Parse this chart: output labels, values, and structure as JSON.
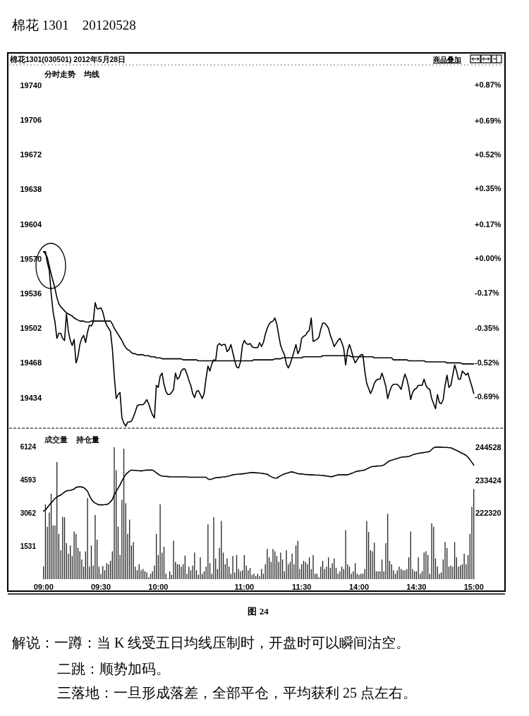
{
  "chart_data": [
    {
      "type": "line",
      "title": "棉花 1301    20120528",
      "subtitle": "棉花1301(030501) 2012年5月28日",
      "annotations": [
        "分时走势",
        "均线",
        "商品叠加"
      ],
      "categories": [
        null,
        null,
        null,
        null,
        null,
        null,
        null,
        null,
        null,
        null,
        null,
        null,
        null,
        null,
        null,
        null,
        null,
        null,
        null,
        null,
        null,
        null,
        null,
        null,
        null,
        null,
        null,
        null,
        null,
        null,
        null,
        null,
        null,
        null,
        null,
        null,
        null,
        null,
        null,
        null,
        null,
        null,
        null,
        null,
        null,
        null,
        null,
        null,
        null,
        null,
        null,
        null,
        null,
        null,
        null,
        null,
        null,
        null,
        null,
        null,
        null,
        null,
        null,
        null,
        null,
        null,
        null,
        null,
        null,
        null,
        null,
        null,
        null,
        null,
        null,
        null,
        null,
        null,
        null,
        null,
        null,
        null,
        null,
        null,
        null,
        null,
        null,
        null,
        null,
        null,
        null,
        null,
        null,
        null,
        null,
        null,
        null,
        null,
        null,
        null,
        null,
        null,
        null,
        null,
        null,
        null,
        null,
        null,
        null,
        null,
        null,
        null,
        null,
        null,
        null,
        null,
        null,
        null,
        null,
        null,
        null,
        null,
        null,
        null,
        null,
        null,
        null,
        null,
        null,
        null,
        null,
        null,
        null,
        null,
        null,
        null,
        null,
        null,
        null,
        null,
        null,
        null,
        null,
        null,
        null,
        null,
        null,
        null,
        null,
        null,
        null,
        null,
        null,
        null,
        null,
        null,
        null,
        null,
        null,
        null,
        null,
        null,
        null,
        null,
        null,
        null,
        null,
        null,
        null,
        null,
        null,
        null,
        null,
        null,
        null,
        null,
        null,
        null,
        null,
        null,
        null,
        null,
        null,
        null,
        null,
        null,
        null,
        null,
        null,
        null,
        null,
        null,
        null,
        null,
        null,
        null,
        null,
        null,
        null,
        null,
        null,
        null,
        null,
        null,
        null,
        null,
        null,
        null,
        null,
        null,
        null,
        null,
        null,
        null,
        null,
        null,
        null,
        null,
        null,
        null,
        null,
        null,
        null,
        null,
        null,
        null
      ],
      "ylim": [
        19404,
        19760
      ],
      "yticks": [
        19434,
        19468,
        19502,
        19536,
        19570,
        19604,
        19638,
        19672,
        19706,
        19740
      ],
      "y2lim": [
        -0.85,
        0.97
      ],
      "y2ticks": [
        {
          "value": -0.69,
          "label": "-0.69%"
        },
        {
          "value": -0.52,
          "label": "-0.52%"
        },
        {
          "value": -0.35,
          "label": "-0.35%"
        },
        {
          "value": -0.17,
          "label": "-0.17%"
        },
        {
          "value": 0,
          "label": "+0.00%"
        },
        {
          "value": 0.17,
          "label": "+0.17%"
        },
        {
          "value": 0.35,
          "label": "+0.35%"
        },
        {
          "value": 0.52,
          "label": "+0.52%"
        },
        {
          "value": 0.69,
          "label": "+0.69%"
        },
        {
          "value": 0.87,
          "label": "+0.87%"
        }
      ],
      "tick_labels": "y",
      "series": [
        {
          "color": "#000000",
          "values": [
            19577,
            19577,
            19566,
            19559,
            19536,
            19518,
            19508,
            19492,
            19497,
            19497,
            19492,
            19490,
            19516,
            19499,
            19490,
            19485,
            19491,
            19468,
            19474,
            19486,
            19492,
            19495,
            19488,
            19498,
            19505,
            19504,
            19508,
            19527,
            19521,
            19521,
            19522,
            19518,
            19510,
            19505,
            19502,
            19499,
            19482,
            19455,
            19433,
            19437,
            19439,
            19414,
            19409,
            19406,
            19410,
            19410,
            19411,
            19415,
            19420,
            19426,
            19427,
            19427,
            19427,
            19429,
            19432,
            19428,
            19422,
            19417,
            19414,
            19446,
            19444,
            19455,
            19458,
            19447,
            19440,
            19437,
            19437,
            19439,
            19442,
            19458,
            19452,
            19454,
            19460,
            19462,
            19462,
            19457,
            19451,
            19446,
            19438,
            19434,
            19440,
            19441,
            19437,
            19433,
            19438,
            19453,
            19465,
            19460,
            19467,
            19471,
            19470,
            19485,
            19487,
            19485,
            19486,
            19486,
            19479,
            19481,
            19486,
            19478,
            19470,
            19464,
            19463,
            19469,
            19485,
            19490,
            19487,
            19486,
            19487,
            19484,
            19483,
            19483,
            19483,
            19488,
            19484,
            19488,
            19496,
            19502,
            19506,
            19508,
            19509,
            19512,
            19506,
            19495,
            19485,
            19480,
            19476,
            19467,
            19463,
            19467,
            19473,
            19479,
            19486,
            19477,
            19481,
            19492,
            19494,
            19495,
            19498,
            19500,
            19512,
            19489,
            19490,
            19491,
            19493,
            19501,
            19507,
            19507,
            19505,
            19502,
            19495,
            19490,
            19484,
            19487,
            19490,
            19492,
            19488,
            19482,
            19466,
            19480,
            19486,
            19480,
            19473,
            19468,
            19471,
            19474,
            19476,
            19476,
            19460,
            19448,
            19443,
            19438,
            19442,
            19448,
            19451,
            19452,
            19452,
            19458,
            19452,
            19445,
            19433,
            19440,
            19445,
            19447,
            19447,
            19447,
            19445,
            19442,
            19450,
            19457,
            19452,
            19444,
            19432,
            19439,
            19442,
            19443,
            19446,
            19446,
            19446,
            19452,
            19446,
            19443,
            19442,
            19433,
            19428,
            19423,
            19437,
            19429,
            19428,
            19432,
            19446,
            19456,
            19444,
            19446,
            19456,
            19466,
            19460,
            19452,
            19452,
            19460,
            19458,
            19456,
            19458,
            19451,
            19445,
            19438
          ]
        },
        {
          "color": "#000000",
          "values": [
            19577,
            19575,
            19571,
            19563,
            19555,
            19548,
            19541,
            19532,
            19526,
            19523,
            19521,
            19519,
            19517,
            19516,
            19515,
            19514,
            19512,
            19511,
            19510,
            19509,
            19509,
            19509,
            19508,
            19508,
            19508,
            19509,
            19509,
            19509,
            19509,
            19509,
            19509,
            19509,
            19509,
            19509,
            19509,
            19509,
            19506,
            19502,
            19499,
            19496,
            19493,
            19490,
            19486,
            19483,
            19481,
            19480,
            19478,
            19477,
            19477,
            19476,
            19476,
            19476,
            19476,
            19475,
            19475,
            19475,
            19474,
            19474,
            19474,
            19473,
            19473,
            19473,
            19472,
            19472,
            19472,
            19472,
            19472,
            19472,
            19472,
            19472,
            19472,
            19472,
            19472,
            19471,
            19471,
            19471,
            19471,
            19471,
            19471,
            19471,
            19471,
            19470,
            19470,
            19470,
            19470,
            19470,
            19470,
            19470,
            19470,
            19470,
            19470,
            19470,
            19470,
            19470,
            19470,
            19470,
            19470,
            19470,
            19470,
            19470,
            19470,
            19470,
            19470,
            19470,
            19470,
            19470,
            19470,
            19470,
            19470,
            19470,
            19471,
            19471,
            19471,
            19471,
            19471,
            19471,
            19471,
            19471,
            19471,
            19471,
            19471,
            19472,
            19472,
            19472,
            19472,
            19473,
            19473,
            19473,
            19473,
            19473,
            19473,
            19473,
            19473,
            19473,
            19473,
            19473,
            19474,
            19474,
            19474,
            19474,
            19474,
            19474,
            19474,
            19474,
            19474,
            19474,
            19475,
            19475,
            19475,
            19475,
            19475,
            19475,
            19475,
            19475,
            19475,
            19475,
            19475,
            19475,
            19475,
            19475,
            19475,
            19474,
            19474,
            19474,
            19474,
            19474,
            19474,
            19474,
            19474,
            19474,
            19474,
            19474,
            19474,
            19473,
            19473,
            19473,
            19473,
            19473,
            19473,
            19473,
            19473,
            19473,
            19473,
            19471,
            19471,
            19471,
            19471,
            19471,
            19471,
            19471,
            19471,
            19470,
            19470,
            19470,
            19470,
            19470,
            19470,
            19470,
            19470,
            19470,
            19469,
            19469,
            19469,
            19469,
            19469,
            19469,
            19469,
            19469,
            19469,
            19469,
            19469,
            19468,
            19468,
            19468,
            19468,
            19468,
            19468,
            19468,
            19468,
            19467,
            19467,
            19467,
            19467,
            19467,
            19467,
            19467
          ]
        }
      ]
    },
    {
      "type": "bar",
      "annotations": [
        "图 24",
        "解说：一蹲：当 K 线受五日均线压制时，开盘时可以瞬间沽空。",
        "二跳：顺势加码。",
        "三落地：一旦形成落差，全部平仓，平均获利 25 点左右。"
      ],
      "categories": [
        "09:00",
        null,
        null,
        null,
        null,
        null,
        null,
        null,
        null,
        null,
        null,
        null,
        null,
        null,
        null,
        null,
        null,
        null,
        null,
        null,
        null,
        null,
        null,
        null,
        null,
        null,
        null,
        null,
        null,
        null,
        "09:30",
        null,
        null,
        null,
        null,
        null,
        null,
        null,
        null,
        null,
        null,
        null,
        null,
        null,
        null,
        null,
        null,
        null,
        null,
        null,
        null,
        null,
        null,
        null,
        null,
        null,
        null,
        null,
        null,
        null,
        "10:00",
        null,
        null,
        null,
        null,
        null,
        null,
        null,
        null,
        null,
        null,
        null,
        null,
        null,
        null,
        null,
        null,
        null,
        null,
        null,
        null,
        null,
        null,
        null,
        null,
        null,
        null,
        null,
        null,
        null,
        null,
        null,
        null,
        null,
        null,
        null,
        null,
        null,
        null,
        null,
        null,
        null,
        null,
        null,
        null,
        "11:00",
        null,
        null,
        null,
        null,
        null,
        null,
        null,
        null,
        null,
        null,
        null,
        null,
        null,
        null,
        null,
        null,
        null,
        null,
        null,
        null,
        null,
        null,
        null,
        null,
        null,
        null,
        null,
        null,
        null,
        "11:30",
        null,
        null,
        null,
        null,
        null,
        null,
        null,
        null,
        null,
        null,
        null,
        null,
        null,
        null,
        null,
        null,
        null,
        null,
        null,
        null,
        null,
        null,
        null,
        null,
        null,
        null,
        null,
        null,
        null,
        "14:00",
        null,
        null,
        null,
        null,
        null,
        null,
        null,
        null,
        null,
        null,
        null,
        null,
        null,
        null,
        null,
        null,
        null,
        null,
        null,
        null,
        null,
        null,
        null,
        null,
        null,
        null,
        null,
        null,
        null,
        "14:30",
        null,
        null,
        null,
        null,
        null,
        null,
        null,
        null,
        null,
        null,
        null,
        null,
        null,
        null,
        null,
        null,
        null,
        null,
        null,
        null,
        null,
        null,
        null,
        null,
        null,
        null,
        null,
        null,
        null,
        "15:00"
      ],
      "ylim": [
        0,
        7000
      ],
      "yticks": [
        1531,
        3062,
        4593,
        6124
      ],
      "y2lim": [
        200112,
        250880
      ],
      "y2ticks": [
        222320,
        233424,
        244528
      ],
      "legend": "top left",
      "series": [
        {
          "name": "成交量",
          "color": "#222222",
          "values": [
            580,
            3470,
            2430,
            3090,
            3960,
            2490,
            2490,
            5430,
            2100,
            1340,
            2890,
            2870,
            1670,
            1180,
            1560,
            1070,
            2210,
            2100,
            1450,
            1290,
            910,
            580,
            1290,
            3760,
            580,
            1560,
            630,
            2980,
            1830,
            580,
            250,
            610,
            410,
            740,
            690,
            850,
            1290,
            6120,
            5050,
            2430,
            1120,
            3680,
            6050,
            3520,
            2100,
            2760,
            1560,
            1720,
            580,
            410,
            690,
            410,
            470,
            360,
            310,
            90,
            250,
            360,
            630,
            2100,
            1120,
            3470,
            1230,
            1500,
            250,
            30,
            360,
            200,
            1780,
            800,
            690,
            690,
            580,
            690,
            1090,
            250,
            580,
            410,
            630,
            1230,
            410,
            200,
            1010,
            250,
            360,
            580,
            2540,
            740,
            250,
            2870,
            960,
            470,
            1450,
            2700,
            1230,
            690,
            960,
            580,
            250,
            1070,
            310,
            1120,
            470,
            360,
            410,
            1120,
            630,
            410,
            520,
            200,
            250,
            140,
            250,
            140,
            470,
            250,
            690,
            1400,
            1010,
            800,
            1400,
            1290,
            1070,
            800,
            1230,
            910,
            360,
            1340,
            690,
            800,
            1180,
            690,
            1560,
            1780,
            470,
            690,
            850,
            800,
            690,
            1010,
            470,
            1120,
            250,
            250,
            90,
            580,
            850,
            470,
            580,
            1010,
            520,
            740,
            960,
            520,
            250,
            360,
            580,
            470,
            2270,
            690,
            580,
            250,
            360,
            740,
            250,
            200,
            250,
            250,
            470,
            2700,
            2190,
            1340,
            1290,
            1690,
            360,
            360,
            360,
            910,
            360,
            1670,
            3030,
            850,
            690,
            410,
            250,
            410,
            580,
            470,
            410,
            410,
            470,
            1010,
            2210,
            470,
            360,
            360,
            1010,
            250,
            360,
            1230,
            1290,
            1120,
            250,
            2590,
            2430,
            960,
            580,
            250,
            310,
            910,
            1720,
            1450,
            580,
            630,
            580,
            1720,
            1010,
            580,
            630,
            690,
            1180,
            690,
            1120,
            2100,
            3360,
            4180
          ]
        },
        {
          "name": "持仓量",
          "type": "line",
          "axis": "y2",
          "color": "#000000",
          "values": [
            223000,
            223400,
            224200,
            225000,
            225800,
            226500,
            227200,
            227800,
            228100,
            228400,
            228900,
            229400,
            229800,
            229900,
            230000,
            230200,
            230400,
            231000,
            231100,
            231200,
            231100,
            230900,
            230400,
            229700,
            228200,
            227000,
            226200,
            225700,
            225400,
            225100,
            225100,
            225100,
            225200,
            225200,
            225500,
            226100,
            226900,
            228500,
            229700,
            230700,
            231800,
            233100,
            234300,
            235300,
            235900,
            236500,
            236800,
            236700,
            236700,
            236600,
            236600,
            236500,
            236600,
            236700,
            236800,
            236800,
            236800,
            236800,
            236400,
            235900,
            235400,
            235000,
            234800,
            234700,
            234700,
            234600,
            234500,
            234500,
            234500,
            234500,
            234500,
            234500,
            234500,
            234500,
            234500,
            234500,
            234400,
            234400,
            234400,
            234400,
            234400,
            234400,
            234400,
            234400,
            234400,
            234400,
            233800,
            233600,
            233800,
            234000,
            234200,
            234300,
            234300,
            234400,
            234500,
            234500,
            234700,
            234800,
            235000,
            235200,
            235300,
            235400,
            235400,
            235500,
            235500,
            235600,
            235700,
            235800,
            235900,
            236000,
            235900,
            235900,
            235800,
            235800,
            235700,
            235600,
            235500,
            235400,
            234900,
            234600,
            234300,
            234100,
            234100,
            234500,
            234900,
            235200,
            235500,
            235700,
            235900,
            236100,
            236200,
            236000,
            235800,
            235600,
            235500,
            235500,
            235400,
            235300,
            235300,
            235200,
            235200,
            235200,
            235100,
            235100,
            235100,
            235000,
            235000,
            234900,
            234800,
            234700,
            234600,
            234600,
            234800,
            235000,
            235200,
            235200,
            235200,
            235200,
            235200,
            235200,
            235400,
            235700,
            235900,
            236200,
            236400,
            236500,
            236600,
            236700,
            236800,
            237200,
            237500,
            237800,
            238000,
            238000,
            238100,
            238200,
            238200,
            238300,
            238500,
            239000,
            239500,
            239900,
            240100,
            240300,
            240500,
            240700,
            240900,
            241100,
            241200,
            241200,
            241300,
            241400,
            241600,
            241900,
            242100,
            242300,
            242400,
            242500,
            242600,
            242700,
            242800,
            242900,
            243100,
            243700,
            244300,
            244500,
            244500,
            244500,
            244500,
            244400,
            244400,
            244400,
            244300,
            244300,
            244000,
            243700,
            243400,
            243100,
            242700,
            242400,
            242100,
            241700,
            241100,
            240300,
            239400,
            238500
          ]
        }
      ]
    }
  ]
}
